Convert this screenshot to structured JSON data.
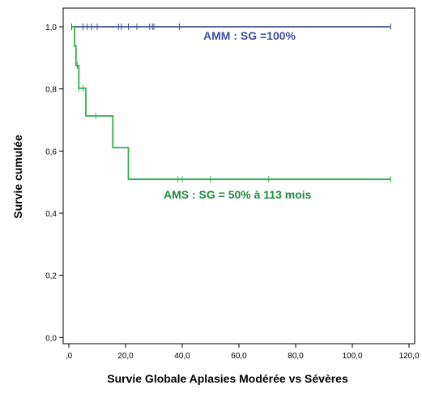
{
  "chart_data": {
    "type": "line",
    "xlabel": "Survie Globale Aplasies Modérée vs Sévères",
    "ylabel": "Survie cumulée",
    "xlim": [
      -2,
      122
    ],
    "ylim": [
      -0.02,
      1.06
    ],
    "xticks": [
      0,
      20,
      40,
      60,
      80,
      100,
      120
    ],
    "xtick_labels": [
      ",0",
      "20,0",
      "40,0",
      "60,0",
      "80,0",
      "100,0",
      "120,0"
    ],
    "yticks": [
      0,
      0.2,
      0.4,
      0.6,
      0.8,
      1.0
    ],
    "ytick_labels": [
      "0,0",
      "0,2",
      "0,4",
      "0,6",
      "0,8",
      "1,0"
    ],
    "grid": false,
    "series": [
      {
        "color": "#3d4f9e",
        "steps": [
          [
            1,
            1.0
          ],
          [
            113.5,
            1.0
          ]
        ],
        "censored": [
          1,
          5,
          6.5,
          8,
          10,
          17.5,
          18.5,
          21,
          24,
          28.5,
          29.5,
          30,
          39,
          113.5
        ]
      },
      {
        "color": "#2db04b",
        "steps": [
          [
            1,
            1.0
          ],
          [
            2,
            1.0
          ],
          [
            2,
            0.938
          ],
          [
            2.5,
            0.938
          ],
          [
            2.5,
            0.875
          ],
          [
            3.5,
            0.875
          ],
          [
            3.5,
            0.802
          ],
          [
            6,
            0.802
          ],
          [
            6,
            0.713
          ],
          [
            15.5,
            0.713
          ],
          [
            15.5,
            0.611
          ],
          [
            21,
            0.611
          ],
          [
            21,
            0.509
          ],
          [
            113.5,
            0.509
          ]
        ],
        "censored": [
          3,
          3.5,
          5,
          9.5,
          38.5,
          40,
          50,
          70.5,
          113.5
        ]
      }
    ],
    "annotations": [
      {
        "text": "AMM : SG =100%",
        "color": "#3d4f9e"
      },
      {
        "text": "AMS : SG = 50% à 113 mois",
        "color": "#1e8a3c"
      }
    ]
  }
}
